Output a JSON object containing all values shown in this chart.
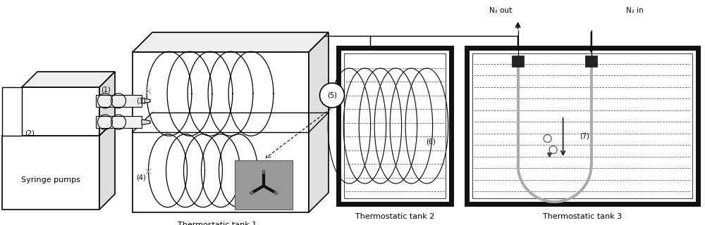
{
  "bg": "#ffffff",
  "lc": "#000000",
  "figsize": [
    10.0,
    3.2
  ],
  "dpi": 100,
  "syringe_pumps": "Syringe pumps",
  "thermo1": "Thermostatic tank 1",
  "thermo2": "Thermostatic tank 2",
  "thermo3": "Thermostatic tank 3",
  "n2_out": "N₂ out",
  "n2_in": "N₂ in",
  "num1": "(1)",
  "num2": "(2)",
  "num3": "(3)",
  "num4": "(4)",
  "num5": "(5)",
  "num6": "(6)",
  "num7": "(7)"
}
